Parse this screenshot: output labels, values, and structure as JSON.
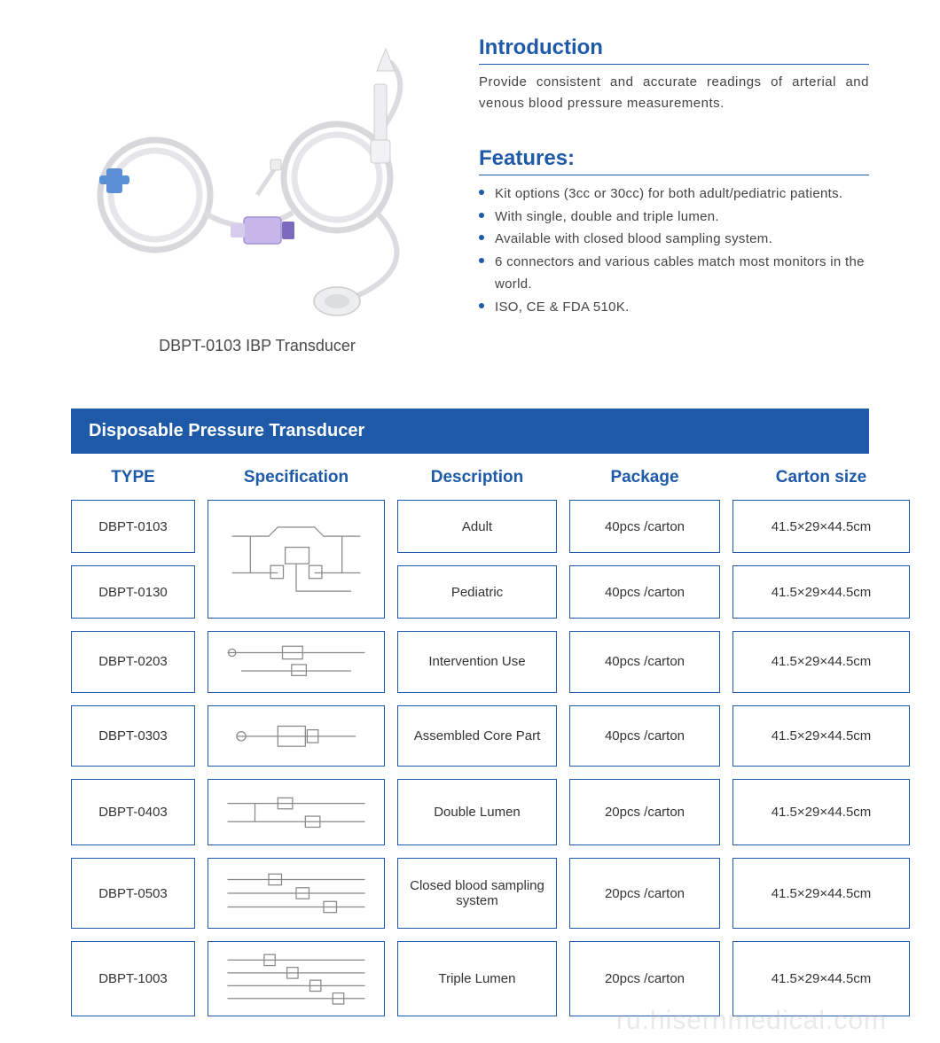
{
  "colors": {
    "heading_blue": "#1e5aa8",
    "bullet_blue": "#1e5aa8",
    "body_text": "#444444",
    "header_bar_bg": "#1e5aa8",
    "col_header_text": "#1e5aa8",
    "cell_border": "#1e5aa8",
    "cell_text": "#333333",
    "underline": "#1e5aa8"
  },
  "product": {
    "caption": "DBPT-0103 IBP Transducer"
  },
  "intro": {
    "title": "Introduction",
    "text": "Provide consistent and accurate readings of arterial and venous blood pressure measurements."
  },
  "features": {
    "title": "Features:",
    "items": [
      "Kit options (3cc or 30cc) for both adult/pediatric patients.",
      "With single, double and triple lumen.",
      "Available with closed blood sampling system.",
      "6 connectors and various cables match most monitors in the world.",
      "ISO, CE & FDA 510K."
    ]
  },
  "table": {
    "title": "Disposable Pressure Transducer",
    "columns": [
      "TYPE",
      "Specification",
      "Description",
      "Package",
      "Carton  size"
    ],
    "rows": [
      {
        "type": "DBPT-0103",
        "spec_icon": "kit",
        "spec_span": 2,
        "description": "Adult",
        "package": "40pcs /carton",
        "carton": "41.5×29×44.5cm"
      },
      {
        "type": "DBPT-0130",
        "spec_icon": null,
        "description": "Pediatric",
        "package": "40pcs /carton",
        "carton": "41.5×29×44.5cm"
      },
      {
        "type": "DBPT-0203",
        "spec_icon": "small1",
        "description": "Intervention Use",
        "package": "40pcs /carton",
        "carton": "41.5×29×44.5cm"
      },
      {
        "type": "DBPT-0303",
        "spec_icon": "small2",
        "description": "Assembled Core Part",
        "package": "40pcs /carton",
        "carton": "41.5×29×44.5cm"
      },
      {
        "type": "DBPT-0403",
        "spec_icon": "double",
        "description": "Double Lumen",
        "package": "20pcs /carton",
        "carton": "41.5×29×44.5cm"
      },
      {
        "type": "DBPT-0503",
        "spec_icon": "closed",
        "description": "Closed blood sampling system",
        "package": "20pcs /carton",
        "carton": "41.5×29×44.5cm"
      },
      {
        "type": "DBPT-1003",
        "spec_icon": "triple",
        "description": "Triple Lumen",
        "package": "20pcs /carton",
        "carton": "41.5×29×44.5cm"
      }
    ]
  },
  "watermark": "ru.hisernmedical.com"
}
